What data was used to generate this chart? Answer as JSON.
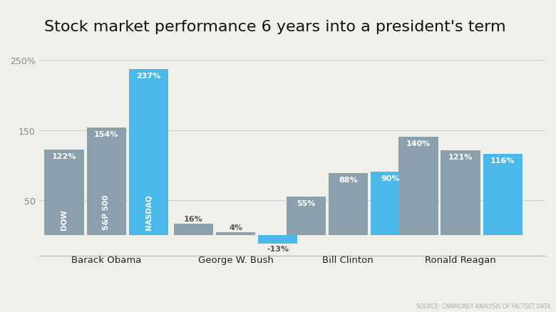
{
  "title": "Stock market performance 6 years into a president's term",
  "source": "SOURCE: CNNMONEY ANALYSIS OF FACTSET DATA",
  "presidents": [
    "Barack Obama",
    "George W. Bush",
    "Bill Clinton",
    "Ronald Reagan"
  ],
  "indices": [
    "DOW",
    "S&P 500",
    "NASDAQ"
  ],
  "values": {
    "Barack Obama": [
      122,
      154,
      237
    ],
    "George W. Bush": [
      16,
      4,
      -13
    ],
    "Bill Clinton": [
      55,
      88,
      90
    ],
    "Ronald Reagan": [
      140,
      121,
      116
    ]
  },
  "bar_colors_by_index": [
    "#8c9fad",
    "#8c9fad",
    "#4ab8e8"
  ],
  "background_color": "#f0f0eb",
  "title_fontsize": 16,
  "ylim": [
    -30,
    270
  ],
  "bar_width": 0.7,
  "group_positions": [
    1.2,
    3.5,
    5.5,
    7.5
  ],
  "group_offsets": [
    -0.75,
    0.0,
    0.75
  ]
}
